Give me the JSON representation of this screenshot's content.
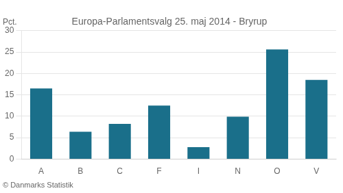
{
  "chart_data": {
    "type": "bar",
    "title": "Europa-Parlamentsvalg 25. maj 2014 - Bryrup",
    "ylabel": "Pct.",
    "footer": "© Danmarks Statistik",
    "categories": [
      "A",
      "B",
      "C",
      "F",
      "I",
      "N",
      "O",
      "V"
    ],
    "values": [
      16.5,
      6.4,
      8.2,
      12.5,
      2.8,
      9.9,
      25.6,
      18.5
    ],
    "color": "#1a6f8a",
    "ylim": [
      0,
      30
    ],
    "yticks": [
      0,
      5,
      10,
      15,
      20,
      25,
      30
    ],
    "grid": true
  }
}
